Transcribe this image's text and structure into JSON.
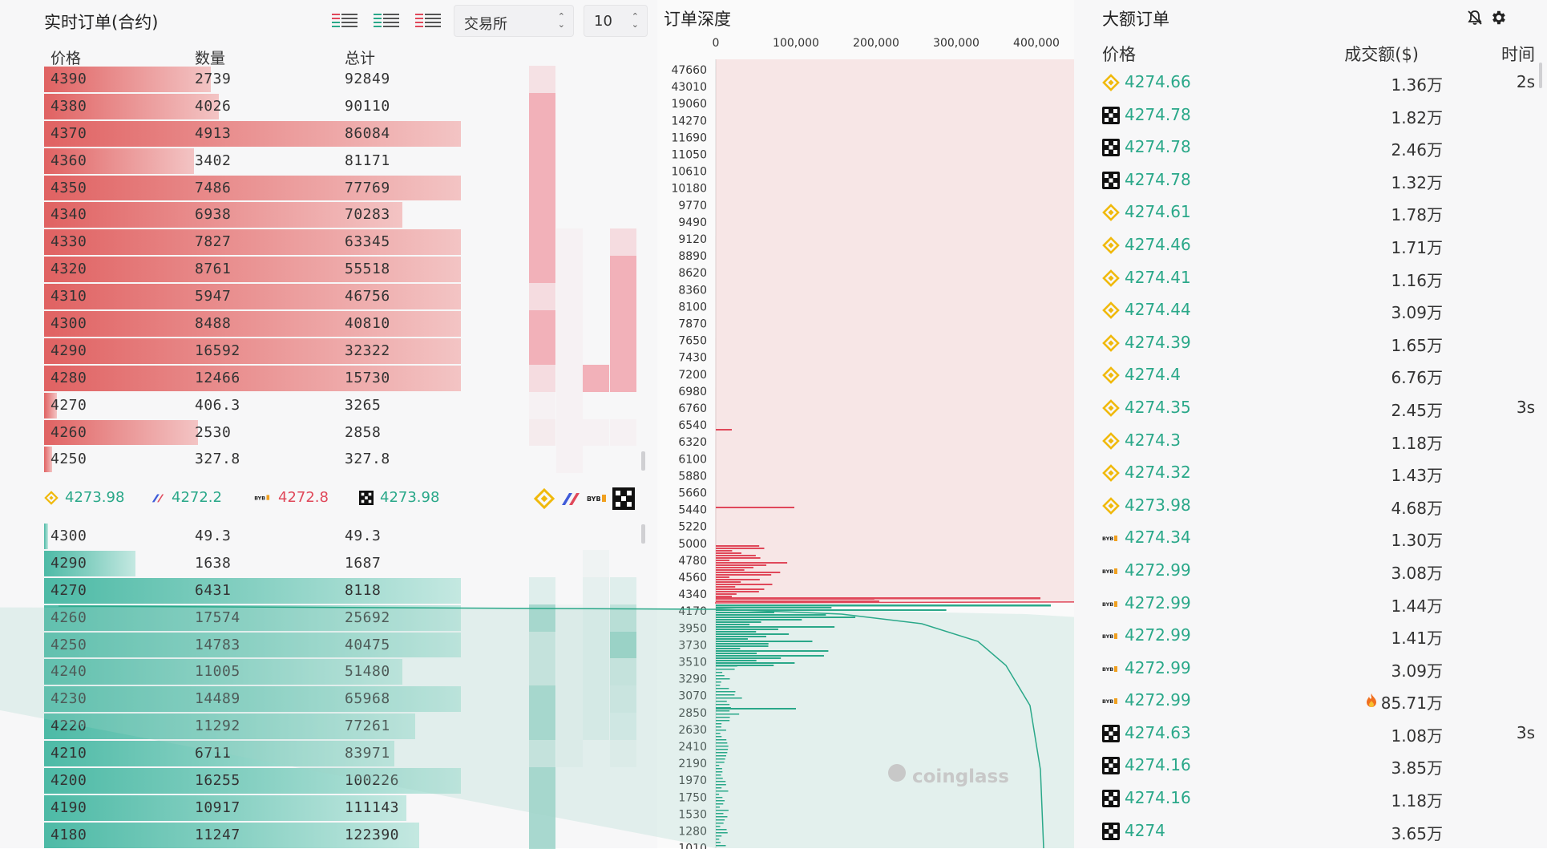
{
  "orderbook": {
    "title": "实时订单(合约)",
    "headers": {
      "price": "价格",
      "qty": "数量",
      "total": "总计"
    },
    "depth_select": "10",
    "exchange_select": "交易所",
    "asks": [
      {
        "price": "4390",
        "qty": "2739",
        "total": "92849",
        "bar": 0.4,
        "accum": 0.4
      },
      {
        "price": "4380",
        "qty": "4026",
        "total": "90110",
        "bar": 0.42,
        "accum": 0.42
      },
      {
        "price": "4370",
        "qty": "4913",
        "total": "86084",
        "bar": 1.0,
        "accum": 1.0
      },
      {
        "price": "4360",
        "qty": "3402",
        "total": "81171",
        "bar": 0.36,
        "accum": 0.36
      },
      {
        "price": "4350",
        "qty": "7486",
        "total": "77769",
        "bar": 1.0,
        "accum": 1.0
      },
      {
        "price": "4340",
        "qty": "6938",
        "total": "70283",
        "bar": 0.86,
        "accum": 0.86
      },
      {
        "price": "4330",
        "qty": "7827",
        "total": "63345",
        "bar": 1.0,
        "accum": 1.0
      },
      {
        "price": "4320",
        "qty": "8761",
        "total": "55518",
        "bar": 1.0,
        "accum": 1.0
      },
      {
        "price": "4310",
        "qty": "5947",
        "total": "46756",
        "bar": 1.0,
        "accum": 1.0
      },
      {
        "price": "4300",
        "qty": "8488",
        "total": "40810",
        "bar": 1.0,
        "accum": 1.0
      },
      {
        "price": "4290",
        "qty": "16592",
        "total": "32322",
        "bar": 1.0,
        "accum": 1.0
      },
      {
        "price": "4280",
        "qty": "12466",
        "total": "15730",
        "bar": 1.0,
        "accum": 1.0
      },
      {
        "price": "4270",
        "qty": "406.3",
        "total": "3265",
        "bar": 0.03,
        "accum": 0.03
      },
      {
        "price": "4260",
        "qty": "2530",
        "total": "2858",
        "bar": 0.37,
        "accum": 0.37
      },
      {
        "price": "4250",
        "qty": "327.8",
        "total": "327.8",
        "bar": 0.02,
        "accum": 0.02
      }
    ],
    "bids": [
      {
        "price": "4300",
        "qty": "49.3",
        "total": "49.3",
        "bar": 0.01,
        "accum": 0.0
      },
      {
        "price": "4290",
        "qty": "1638",
        "total": "1687",
        "bar": 0.22,
        "accum": 0.0
      },
      {
        "price": "4270",
        "qty": "6431",
        "total": "8118",
        "bar": 1.0,
        "accum": 1.0
      },
      {
        "price": "4260",
        "qty": "17574",
        "total": "25692",
        "bar": 1.0,
        "accum": 1.0
      },
      {
        "price": "4250",
        "qty": "14783",
        "total": "40475",
        "bar": 1.0,
        "accum": 1.0
      },
      {
        "price": "4240",
        "qty": "11005",
        "total": "51480",
        "bar": 0.86,
        "accum": 0.86
      },
      {
        "price": "4230",
        "qty": "14489",
        "total": "65968",
        "bar": 1.0,
        "accum": 1.0
      },
      {
        "price": "4220",
        "qty": "11292",
        "total": "77261",
        "bar": 0.89,
        "accum": 0.89
      },
      {
        "price": "4210",
        "qty": "6711",
        "total": "83971",
        "bar": 0.84,
        "accum": 0.84
      },
      {
        "price": "4200",
        "qty": "16255",
        "total": "100226",
        "bar": 1.0,
        "accum": 1.0
      },
      {
        "price": "4190",
        "qty": "10917",
        "total": "111143",
        "bar": 0.87,
        "accum": 0.87
      },
      {
        "price": "4180",
        "qty": "11247",
        "total": "122390",
        "bar": 0.9,
        "accum": 0.9
      }
    ],
    "exchange_prices": [
      {
        "icon": "binance-icon",
        "price": "4273.98",
        "color": "#2aa889"
      },
      {
        "icon": "bitget-icon",
        "price": "4272.2",
        "color": "#2aa889"
      },
      {
        "icon": "bybit-icon",
        "price": "4272.8",
        "color": "#e0485a"
      },
      {
        "icon": "okx-icon",
        "price": "4273.98",
        "color": "#2aa889"
      }
    ]
  },
  "depth": {
    "title": "订单深度",
    "x_ticks": [
      "0",
      "100,000",
      "200,000",
      "300,000",
      "400,000"
    ],
    "y_ticks": [
      "47660",
      "43010",
      "19060",
      "14270",
      "11690",
      "11050",
      "10610",
      "10180",
      "9770",
      "9490",
      "9120",
      "8890",
      "8620",
      "8360",
      "8100",
      "7870",
      "7650",
      "7430",
      "7200",
      "6980",
      "6760",
      "6540",
      "6320",
      "6100",
      "5880",
      "5660",
      "5440",
      "5220",
      "5000",
      "4780",
      "4560",
      "4340",
      "4170",
      "3950",
      "3730",
      "3510",
      "3290",
      "3070",
      "2850",
      "2630",
      "2410",
      "2190",
      "1970",
      "1750",
      "1530",
      "1280",
      "1010"
    ],
    "watermark": "coinglass"
  },
  "big_orders": {
    "title": "大额订单",
    "headers": {
      "price": "价格",
      "amount": "成交额($)",
      "time": "时间"
    },
    "rows": [
      {
        "icon": "binance-icon",
        "price": "4274.66",
        "amount": "1.36万",
        "time": "2s"
      },
      {
        "icon": "okx-icon",
        "price": "4274.78",
        "amount": "1.82万",
        "time": ""
      },
      {
        "icon": "okx-icon",
        "price": "4274.78",
        "amount": "2.46万",
        "time": ""
      },
      {
        "icon": "okx-icon",
        "price": "4274.78",
        "amount": "1.32万",
        "time": ""
      },
      {
        "icon": "binance-icon",
        "price": "4274.61",
        "amount": "1.78万",
        "time": ""
      },
      {
        "icon": "binance-icon",
        "price": "4274.46",
        "amount": "1.71万",
        "time": ""
      },
      {
        "icon": "binance-icon",
        "price": "4274.41",
        "amount": "1.16万",
        "time": ""
      },
      {
        "icon": "binance-icon",
        "price": "4274.44",
        "amount": "3.09万",
        "time": ""
      },
      {
        "icon": "binance-icon",
        "price": "4274.39",
        "amount": "1.65万",
        "time": ""
      },
      {
        "icon": "binance-icon",
        "price": "4274.4",
        "amount": "6.76万",
        "time": ""
      },
      {
        "icon": "binance-icon",
        "price": "4274.35",
        "amount": "2.45万",
        "time": "3s"
      },
      {
        "icon": "binance-icon",
        "price": "4274.3",
        "amount": "1.18万",
        "time": ""
      },
      {
        "icon": "binance-icon",
        "price": "4274.32",
        "amount": "1.43万",
        "time": ""
      },
      {
        "icon": "binance-icon",
        "price": "4273.98",
        "amount": "4.68万",
        "time": ""
      },
      {
        "icon": "bybit-icon",
        "price": "4274.34",
        "amount": "1.30万",
        "time": ""
      },
      {
        "icon": "bybit-icon",
        "price": "4272.99",
        "amount": "3.08万",
        "time": ""
      },
      {
        "icon": "bybit-icon",
        "price": "4272.99",
        "amount": "1.44万",
        "time": ""
      },
      {
        "icon": "bybit-icon",
        "price": "4272.99",
        "amount": "1.41万",
        "time": ""
      },
      {
        "icon": "bybit-icon",
        "price": "4272.99",
        "amount": "3.09万",
        "time": ""
      },
      {
        "icon": "bybit-icon",
        "price": "4272.99",
        "amount": "85.71万",
        "time": "",
        "fire": true
      },
      {
        "icon": "okx-icon",
        "price": "4274.63",
        "amount": "1.08万",
        "time": "3s"
      },
      {
        "icon": "okx-icon",
        "price": "4274.16",
        "amount": "3.85万",
        "time": ""
      },
      {
        "icon": "okx-icon",
        "price": "4274.16",
        "amount": "1.18万",
        "time": ""
      },
      {
        "icon": "okx-icon",
        "price": "4274",
        "amount": "3.65万",
        "time": ""
      }
    ]
  },
  "colors": {
    "ask": "#e0485a",
    "bid": "#2aa889",
    "binance": "#f0b90b"
  }
}
